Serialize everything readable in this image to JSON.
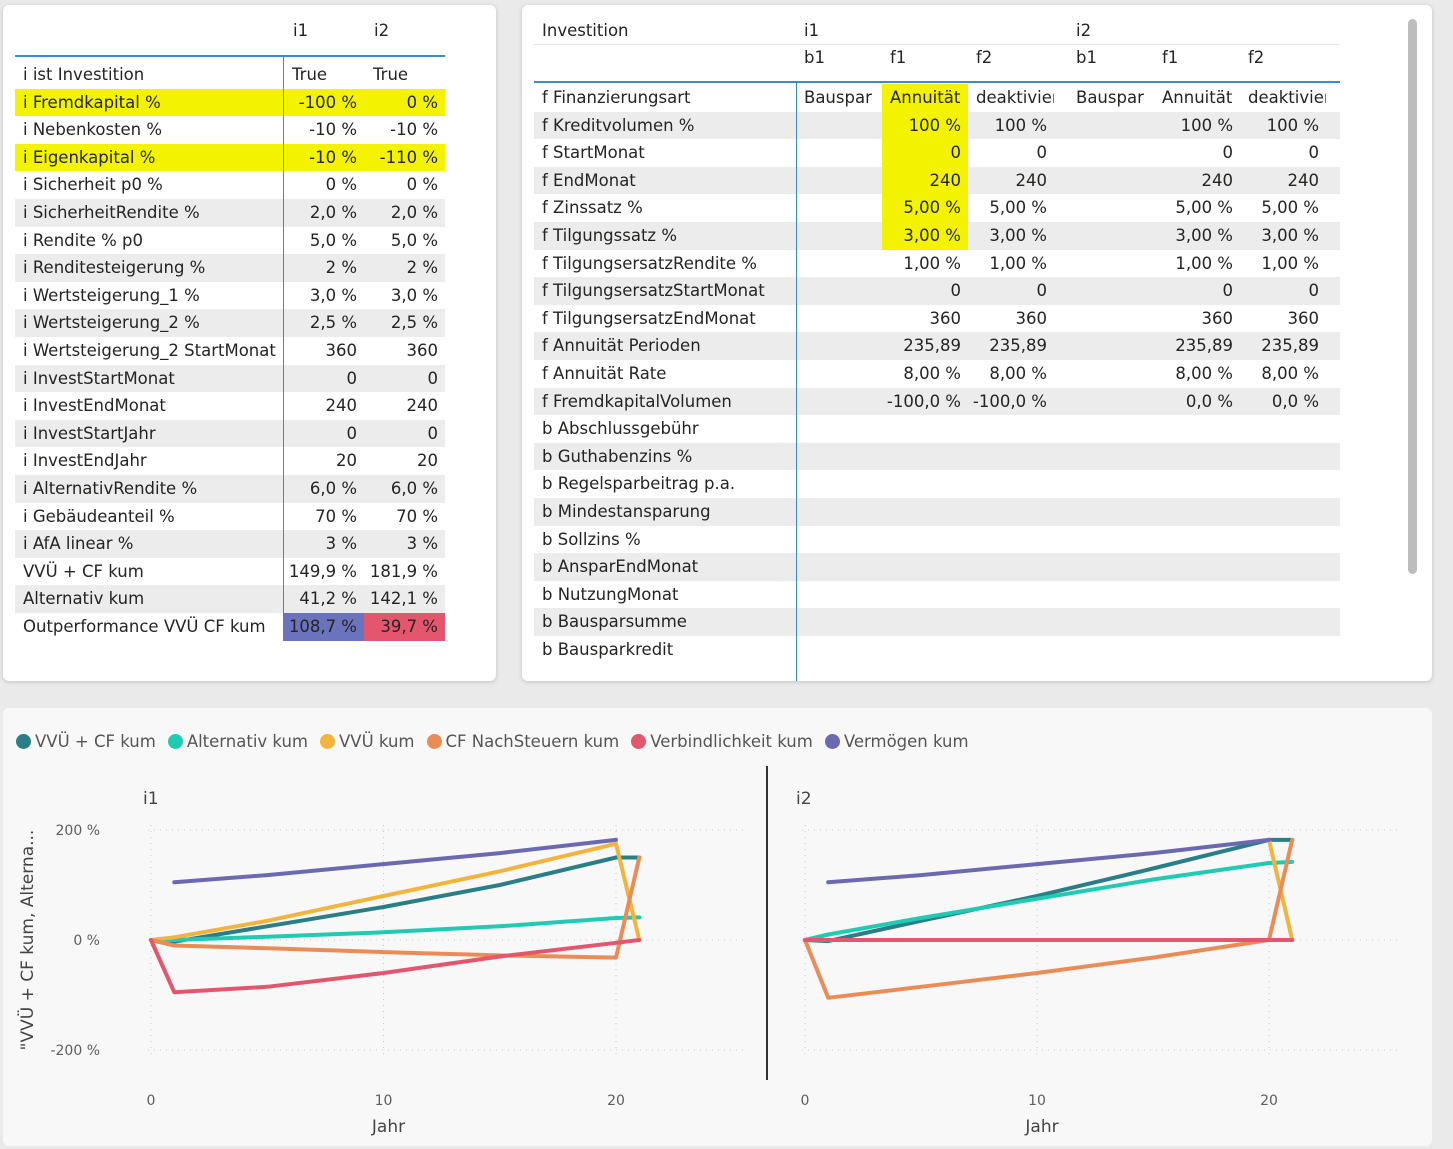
{
  "left_table": {
    "columns": [
      "i1",
      "i2"
    ],
    "rows": [
      {
        "label": "i ist Investition",
        "i1": "True",
        "i2": "True",
        "hl": false,
        "align": "left"
      },
      {
        "label": "i Fremdkapital %",
        "i1": "-100 %",
        "i2": "0 %",
        "hl": true
      },
      {
        "label": "i Nebenkosten %",
        "i1": "-10 %",
        "i2": "-10 %",
        "hl": false
      },
      {
        "label": "i Eigenkapital %",
        "i1": "-10 %",
        "i2": "-110 %",
        "hl": true
      },
      {
        "label": "i Sicherheit p0 %",
        "i1": "0 %",
        "i2": "0 %",
        "hl": false
      },
      {
        "label": "i SicherheitRendite %",
        "i1": "2,0 %",
        "i2": "2,0 %",
        "hl": false
      },
      {
        "label": "i Rendite % p0",
        "i1": "5,0 %",
        "i2": "5,0 %",
        "hl": false
      },
      {
        "label": "i Renditesteigerung %",
        "i1": "2 %",
        "i2": "2 %",
        "hl": false
      },
      {
        "label": "i Wertsteigerung_1 %",
        "i1": "3,0 %",
        "i2": "3,0 %",
        "hl": false
      },
      {
        "label": "i Wertsteigerung_2 %",
        "i1": "2,5 %",
        "i2": "2,5 %",
        "hl": false
      },
      {
        "label": "i Wertsteigerung_2 StartMonat",
        "i1": "360",
        "i2": "360",
        "hl": false
      },
      {
        "label": "i InvestStartMonat",
        "i1": "0",
        "i2": "0",
        "hl": false
      },
      {
        "label": "i InvestEndMonat",
        "i1": "240",
        "i2": "240",
        "hl": false
      },
      {
        "label": "i InvestStartJahr",
        "i1": "0",
        "i2": "0",
        "hl": false
      },
      {
        "label": "i InvestEndJahr",
        "i1": "20",
        "i2": "20",
        "hl": false
      },
      {
        "label": "i AlternativRendite %",
        "i1": "6,0 %",
        "i2": "6,0 %",
        "hl": false
      },
      {
        "label": "i Gebäudeanteil %",
        "i1": "70 %",
        "i2": "70 %",
        "hl": false
      },
      {
        "label": "i AfA linear %",
        "i1": "3 %",
        "i2": "3 %",
        "hl": false
      },
      {
        "label": "VVÜ + CF kum",
        "i1": "149,9 %",
        "i2": "181,9 %",
        "hl": false
      },
      {
        "label": "Alternativ kum",
        "i1": "41,2 %",
        "i2": "142,1 %",
        "hl": false
      },
      {
        "label": "Outperformance VVÜ CF kum",
        "i1": "108,7 %",
        "i2": "39,7 %",
        "hl": false,
        "colored": true
      }
    ]
  },
  "right_table": {
    "corner": "Investition",
    "groups": [
      "i1",
      "i2"
    ],
    "subcols": [
      "b1",
      "f1",
      "f2",
      "b1",
      "f1",
      "f2"
    ],
    "rows": [
      {
        "label": "f Finanzierungsart",
        "v": [
          "Bauspar",
          "Annuität",
          "deaktiviert",
          "Bauspar",
          "Annuität",
          "deaktiviert"
        ],
        "text": true
      },
      {
        "label": "f Kreditvolumen %",
        "v": [
          "",
          "100 %",
          "100 %",
          "",
          "100 %",
          "100 %"
        ]
      },
      {
        "label": "f StartMonat",
        "v": [
          "",
          "0",
          "0",
          "",
          "0",
          "0"
        ]
      },
      {
        "label": "f EndMonat",
        "v": [
          "",
          "240",
          "240",
          "",
          "240",
          "240"
        ]
      },
      {
        "label": "f Zinssatz %",
        "v": [
          "",
          "5,00 %",
          "5,00 %",
          "",
          "5,00 %",
          "5,00 %"
        ]
      },
      {
        "label": "f Tilgungssatz %",
        "v": [
          "",
          "3,00 %",
          "3,00 %",
          "",
          "3,00 %",
          "3,00 %"
        ]
      },
      {
        "label": "f TilgungsersatzRendite %",
        "v": [
          "",
          "1,00 %",
          "1,00 %",
          "",
          "1,00 %",
          "1,00 %"
        ]
      },
      {
        "label": "f TilgungsersatzStartMonat",
        "v": [
          "",
          "0",
          "0",
          "",
          "0",
          "0"
        ]
      },
      {
        "label": "f TilgungsersatzEndMonat",
        "v": [
          "",
          "360",
          "360",
          "",
          "360",
          "360"
        ]
      },
      {
        "label": "f Annuität Perioden",
        "v": [
          "",
          "235,89",
          "235,89",
          "",
          "235,89",
          "235,89"
        ]
      },
      {
        "label": "f Annuität Rate",
        "v": [
          "",
          "8,00 %",
          "8,00 %",
          "",
          "8,00 %",
          "8,00 %"
        ]
      },
      {
        "label": "f FremdkapitalVolumen",
        "v": [
          "",
          "-100,0 %",
          "-100,0 %",
          "",
          "0,0 %",
          "0,0 %"
        ]
      },
      {
        "label": "b Abschlussgebühr",
        "v": [
          "",
          "",
          "",
          "",
          "",
          ""
        ]
      },
      {
        "label": "b Guthabenzins %",
        "v": [
          "",
          "",
          "",
          "",
          "",
          ""
        ]
      },
      {
        "label": "b Regelsparbeitrag p.a.",
        "v": [
          "",
          "",
          "",
          "",
          "",
          ""
        ]
      },
      {
        "label": "b Mindestansparung",
        "v": [
          "",
          "",
          "",
          "",
          "",
          ""
        ]
      },
      {
        "label": "b Sollzins %",
        "v": [
          "",
          "",
          "",
          "",
          "",
          ""
        ]
      },
      {
        "label": "b AnsparEndMonat",
        "v": [
          "",
          "",
          "",
          "",
          "",
          ""
        ]
      },
      {
        "label": "b NutzungMonat",
        "v": [
          "",
          "",
          "",
          "",
          "",
          ""
        ]
      },
      {
        "label": "b Bausparsumme",
        "v": [
          "",
          "",
          "",
          "",
          "",
          ""
        ]
      },
      {
        "label": "b Bausparkredit",
        "v": [
          "",
          "",
          "",
          "",
          "",
          ""
        ]
      }
    ]
  },
  "chart_data": {
    "type": "line",
    "legend": [
      {
        "name": "VVÜ + CF kum",
        "color": "#2a7e86"
      },
      {
        "name": "Alternativ kum",
        "color": "#1fcbb3"
      },
      {
        "name": "VVÜ kum",
        "color": "#f2b43d"
      },
      {
        "name": "CF NachSteuern kum",
        "color": "#eb8c56"
      },
      {
        "name": "Verbindlichkeit kum",
        "color": "#e4566e"
      },
      {
        "name": "Vermögen kum",
        "color": "#6b69b0"
      }
    ],
    "ylabel": "\"VVÜ + CF kum, Alterna...",
    "xlabel": "Jahr",
    "yticks": [
      "200 %",
      "0 %",
      "-200 %"
    ],
    "ylim": [
      -200,
      200
    ],
    "xticks": [
      0,
      10,
      20
    ],
    "xlim": [
      0,
      25
    ],
    "panels": [
      {
        "title": "i1",
        "series": [
          {
            "name": "VVÜ + CF kum",
            "x": [
              0,
              1,
              5,
              10,
              15,
              20,
              21
            ],
            "y": [
              0,
              -3,
              25,
              60,
              100,
              150,
              150
            ]
          },
          {
            "name": "Alternativ kum",
            "x": [
              0,
              1,
              5,
              10,
              15,
              20,
              21
            ],
            "y": [
              0,
              0,
              6,
              14,
              25,
              40,
              41
            ]
          },
          {
            "name": "VVÜ kum",
            "x": [
              0,
              1,
              5,
              10,
              15,
              20,
              21
            ],
            "y": [
              0,
              5,
              35,
              80,
              125,
              175,
              0
            ]
          },
          {
            "name": "CF NachSteuern kum",
            "x": [
              0,
              1,
              5,
              10,
              15,
              20,
              21
            ],
            "y": [
              0,
              -10,
              -15,
              -22,
              -28,
              -32,
              150
            ]
          },
          {
            "name": "Verbindlichkeit kum",
            "x": [
              0,
              1,
              5,
              10,
              15,
              20,
              21
            ],
            "y": [
              0,
              -95,
              -85,
              -60,
              -30,
              -5,
              0
            ]
          },
          {
            "name": "Vermögen kum",
            "x": [
              1,
              5,
              10,
              15,
              20
            ],
            "y": [
              105,
              118,
              138,
              158,
              182
            ]
          }
        ]
      },
      {
        "title": "i2",
        "series": [
          {
            "name": "VVÜ + CF kum",
            "x": [
              0,
              1,
              5,
              10,
              15,
              20,
              21
            ],
            "y": [
              0,
              -2,
              35,
              80,
              130,
              182,
              182
            ]
          },
          {
            "name": "Alternativ kum",
            "x": [
              0,
              1,
              5,
              10,
              15,
              20,
              21
            ],
            "y": [
              0,
              10,
              40,
              75,
              110,
              140,
              142
            ]
          },
          {
            "name": "VVÜ kum",
            "x": [
              20,
              21
            ],
            "y": [
              182,
              0
            ]
          },
          {
            "name": "CF NachSteuern kum",
            "x": [
              0,
              1,
              5,
              10,
              15,
              20,
              21
            ],
            "y": [
              0,
              -105,
              -85,
              -60,
              -32,
              0,
              182
            ]
          },
          {
            "name": "Verbindlichkeit kum",
            "x": [
              0,
              1,
              20,
              21
            ],
            "y": [
              0,
              0,
              0,
              0
            ]
          },
          {
            "name": "Vermögen kum",
            "x": [
              1,
              5,
              10,
              15,
              20
            ],
            "y": [
              105,
              118,
              138,
              158,
              182
            ]
          }
        ]
      }
    ]
  }
}
